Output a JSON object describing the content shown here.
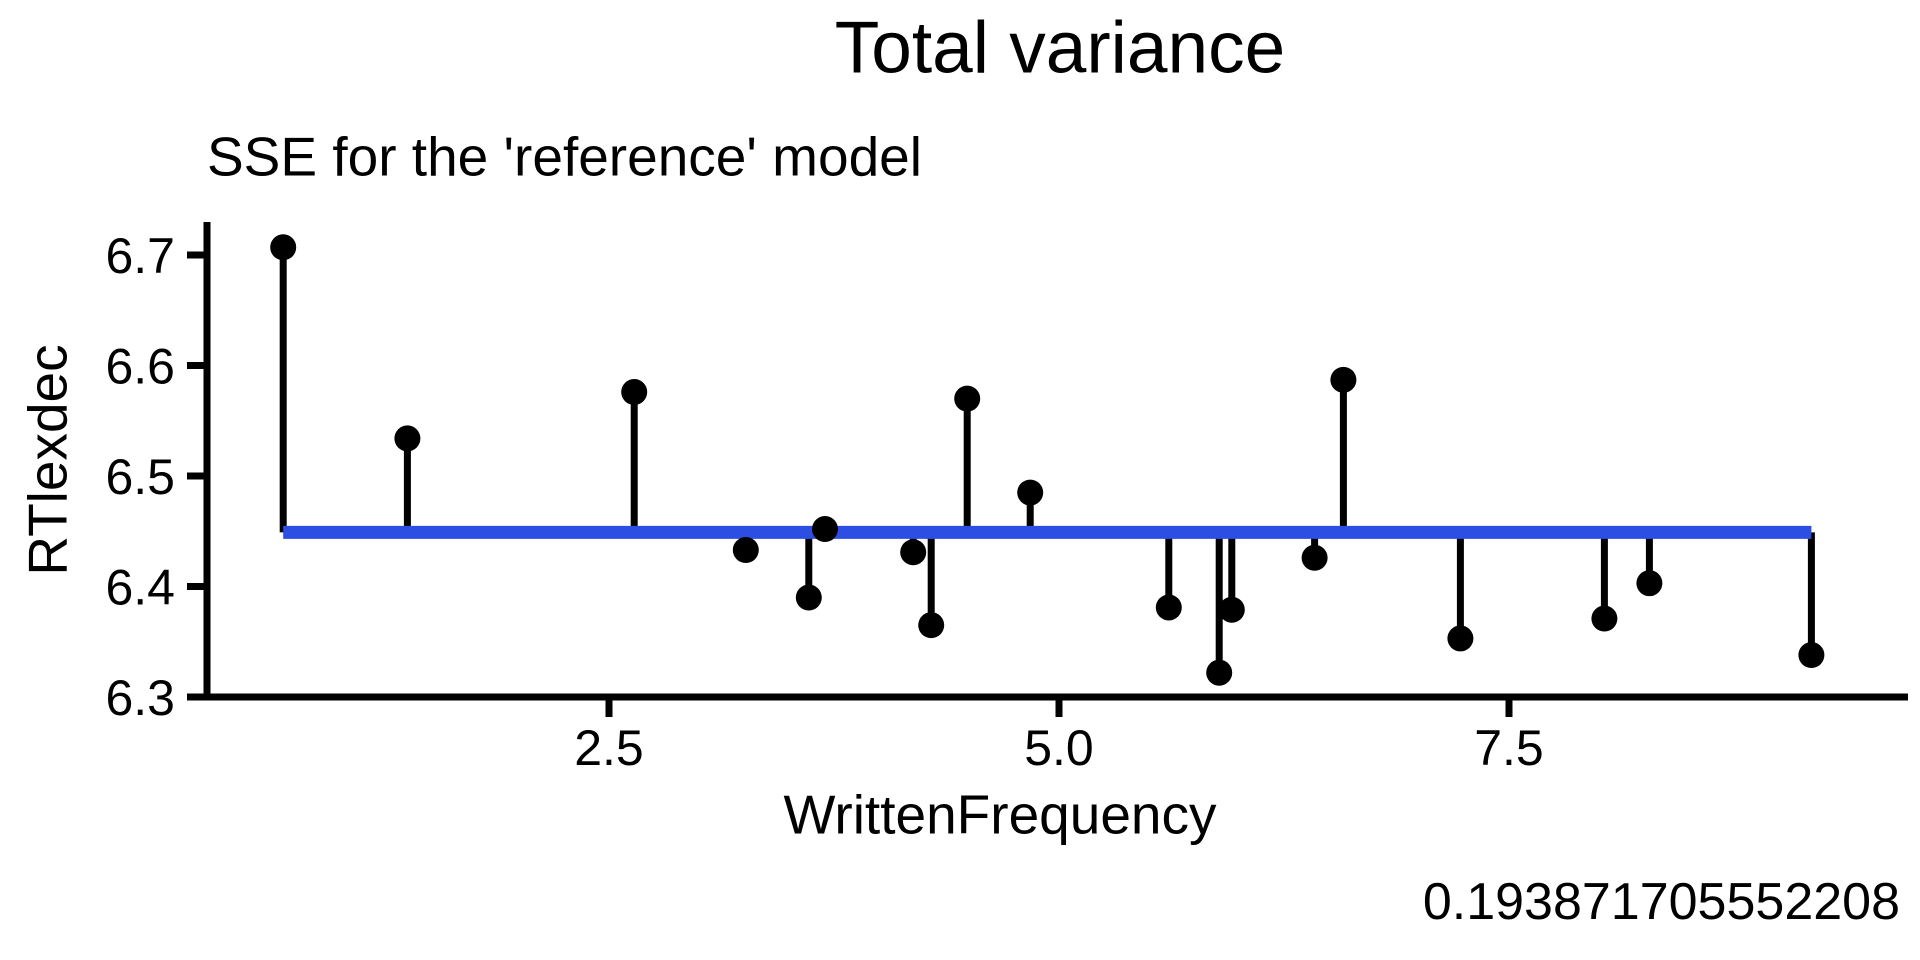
{
  "chart_data": {
    "type": "scatter",
    "title": "Total variance",
    "subtitle": "SSE for the 'reference' model",
    "xlabel": "WrittenFrequency",
    "ylabel": "RTlexdec",
    "sse_annotation": "0.193871705552208",
    "x_ticks": [
      {
        "value": 2.5,
        "label": "2.5"
      },
      {
        "value": 5.0,
        "label": "5.0"
      },
      {
        "value": 7.5,
        "label": "7.5"
      }
    ],
    "y_ticks": [
      {
        "value": 6.3,
        "label": "6.3"
      },
      {
        "value": 6.4,
        "label": "6.4"
      },
      {
        "value": 6.5,
        "label": "6.5"
      },
      {
        "value": 6.6,
        "label": "6.6"
      },
      {
        "value": 6.7,
        "label": "6.7"
      }
    ],
    "xlim": [
      0.27,
      9.72
    ],
    "ylim": [
      6.3,
      6.73
    ],
    "grid": false,
    "legend": "none",
    "point_color": "#000000",
    "residual_stem_color": "#000000",
    "reference_line": {
      "y": 6.449,
      "x_start": 0.69,
      "x_end": 9.18,
      "color": "#2c4ee2"
    },
    "points": [
      {
        "x": 0.69,
        "y": 6.707
      },
      {
        "x": 1.38,
        "y": 6.534
      },
      {
        "x": 2.64,
        "y": 6.576
      },
      {
        "x": 3.26,
        "y": 6.433
      },
      {
        "x": 3.61,
        "y": 6.39
      },
      {
        "x": 3.7,
        "y": 6.452
      },
      {
        "x": 4.19,
        "y": 6.431
      },
      {
        "x": 4.29,
        "y": 6.365
      },
      {
        "x": 4.49,
        "y": 6.57
      },
      {
        "x": 4.84,
        "y": 6.485
      },
      {
        "x": 5.61,
        "y": 6.381
      },
      {
        "x": 5.89,
        "y": 6.322
      },
      {
        "x": 5.96,
        "y": 6.379
      },
      {
        "x": 6.42,
        "y": 6.426
      },
      {
        "x": 6.58,
        "y": 6.587
      },
      {
        "x": 7.23,
        "y": 6.353
      },
      {
        "x": 8.03,
        "y": 6.371
      },
      {
        "x": 8.28,
        "y": 6.403
      },
      {
        "x": 9.18,
        "y": 6.338
      }
    ]
  }
}
